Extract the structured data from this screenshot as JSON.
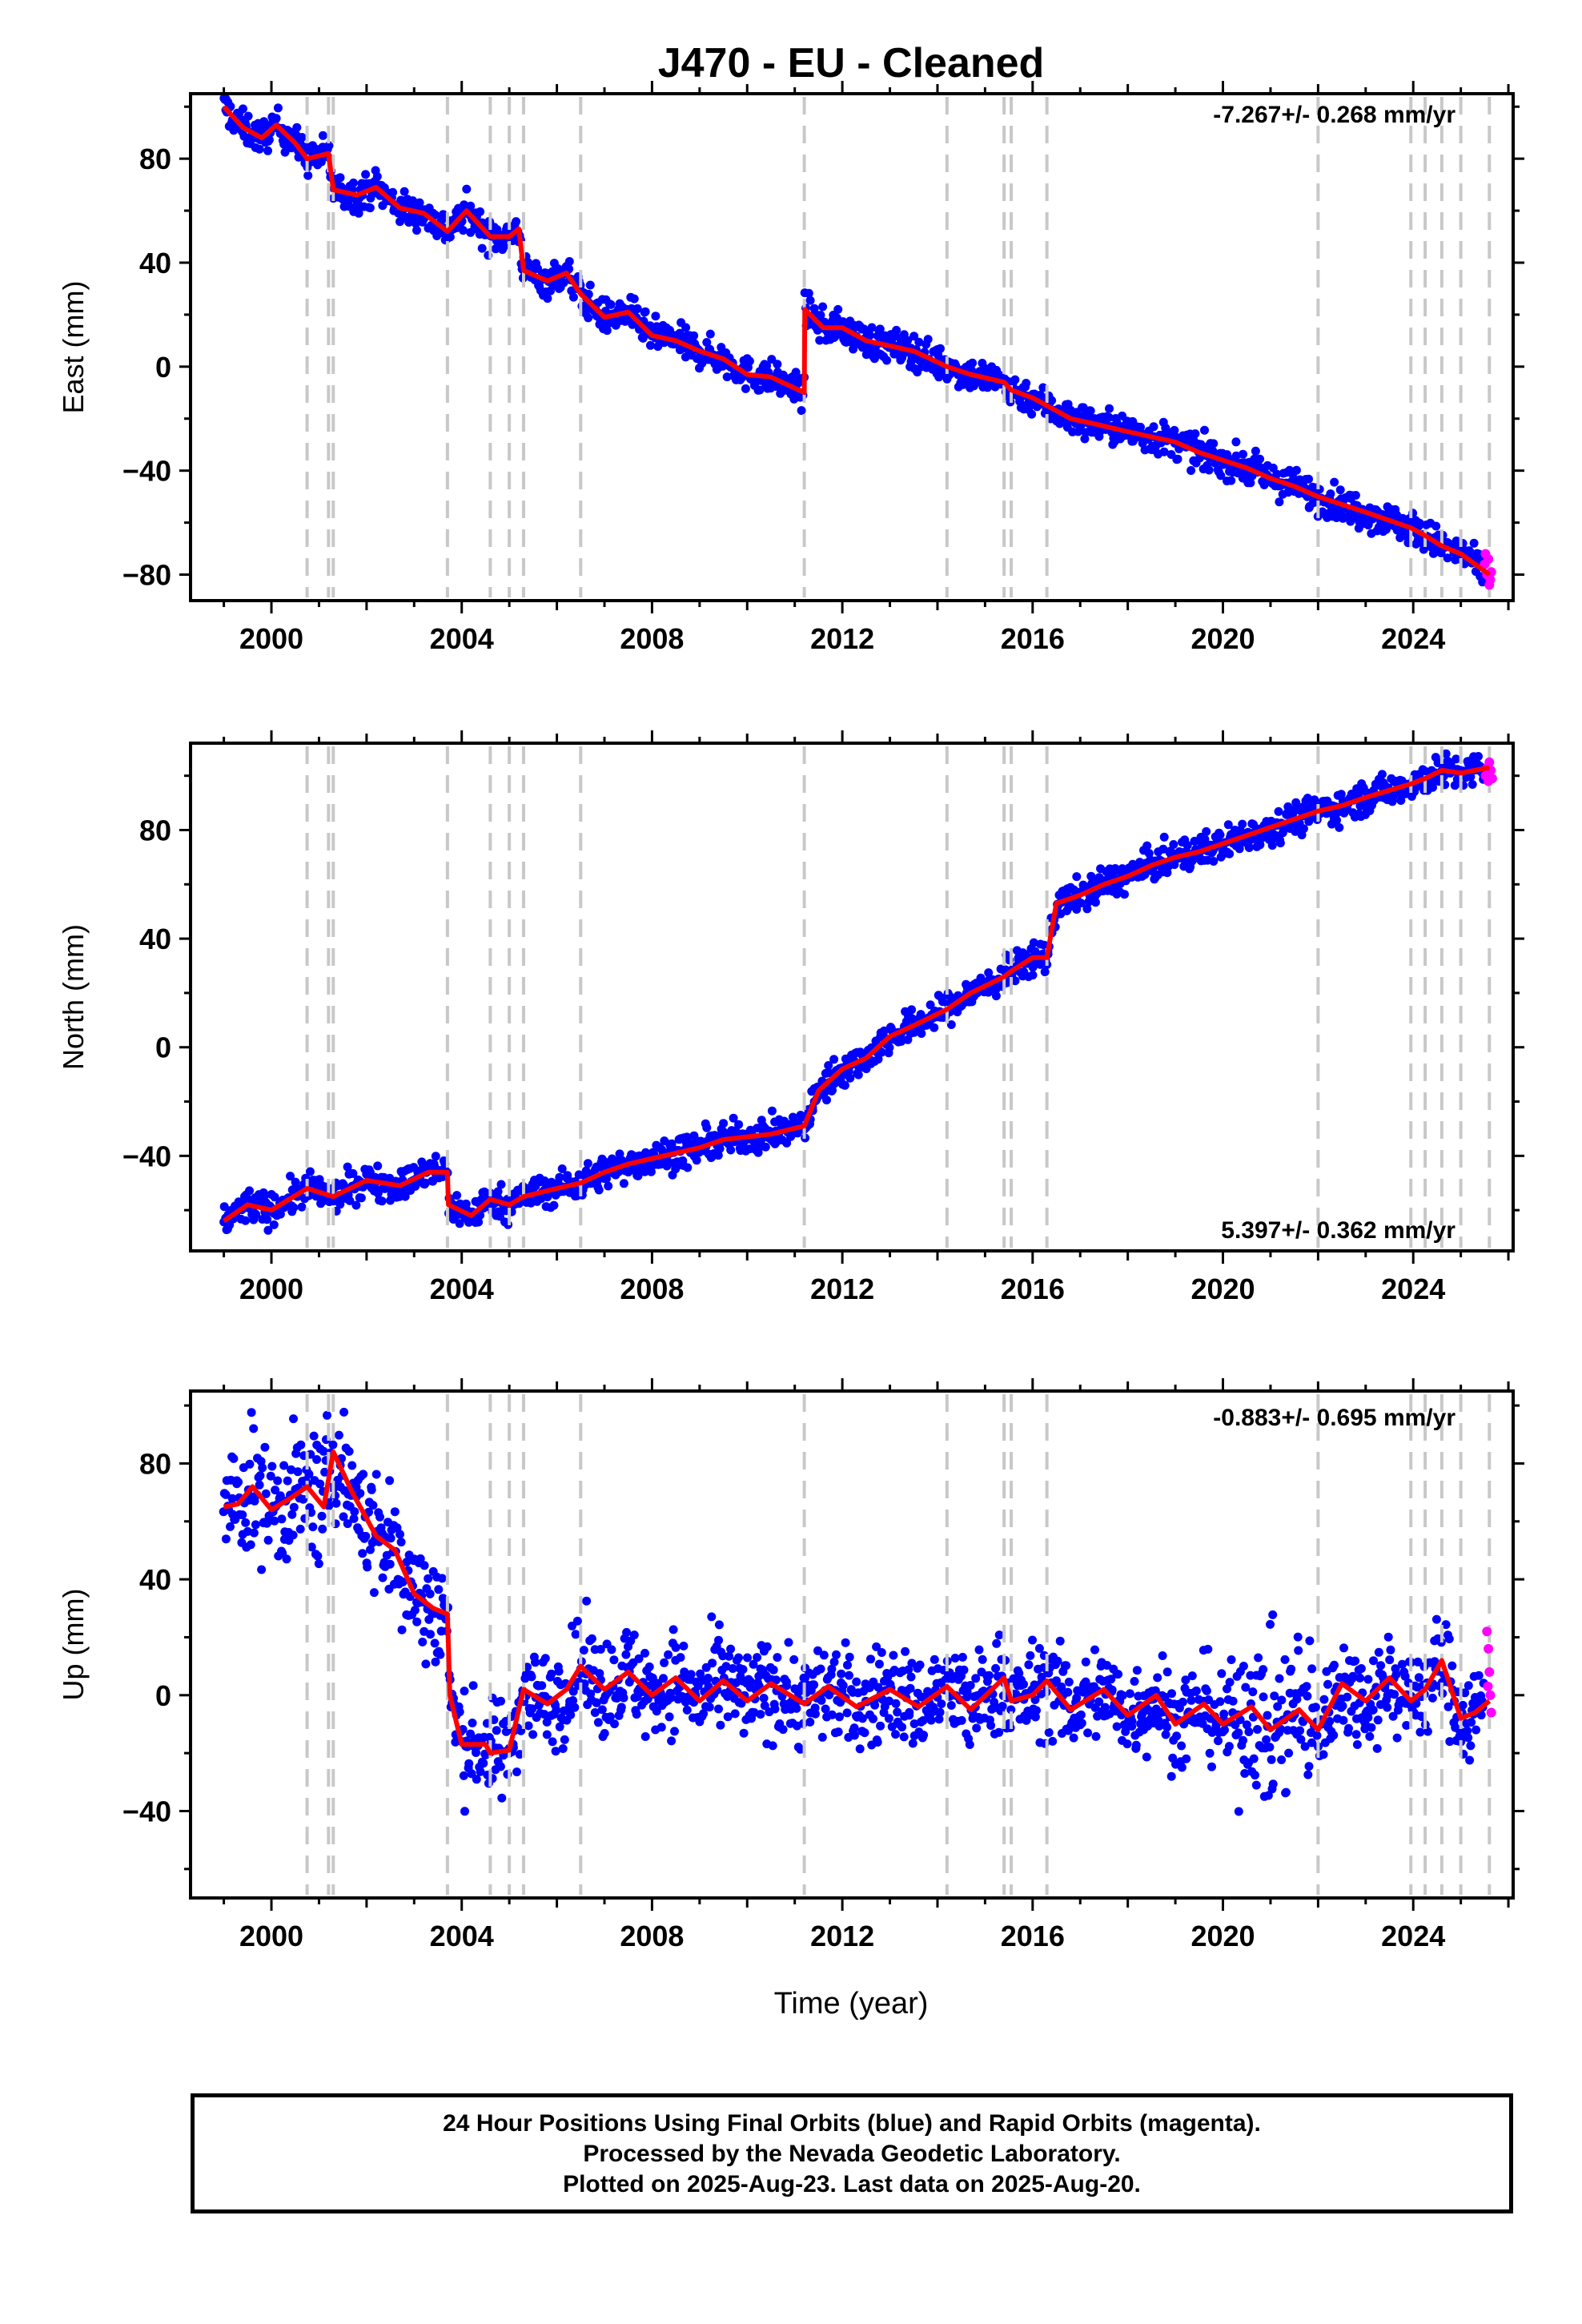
{
  "title": "J470  - EU - Cleaned",
  "x_axis_label": "Time (year)",
  "footer": {
    "line1": "24 Hour Positions Using Final Orbits (blue) and Rapid Orbits (magenta).",
    "line2": "Processed by the Nevada Geodetic Laboratory.",
    "line3": "Plotted on 2025-Aug-23. Last data on 2025-Aug-20."
  },
  "colors": {
    "final_orbits": "#0000ff",
    "rapid_orbits": "#ff00ff",
    "model": "#ff0000",
    "events": "#c8c8c8"
  },
  "chart_data": [
    {
      "type": "scatter",
      "component": "East",
      "ylabel": "East (mm)",
      "rate_label": "-7.267+/- 0.268 mm/yr",
      "xlim": [
        1998.3,
        2026.1
      ],
      "ylim": [
        -90,
        105
      ],
      "xticks": [
        2000,
        2004,
        2008,
        2012,
        2016,
        2020,
        2024
      ],
      "yticks": [
        80,
        40,
        0,
        -40,
        -80
      ],
      "tick_labels": [
        "80",
        "40",
        "0",
        "−40",
        "−80"
      ],
      "x_tick_labels": [
        "2000",
        "2004",
        "2008",
        "2012",
        "2016",
        "2020",
        "2024"
      ],
      "events": [
        2000.75,
        2001.2,
        2001.3,
        2003.7,
        2004.6,
        2005.0,
        2005.3,
        2006.5,
        2011.2,
        2014.2,
        2015.4,
        2015.55,
        2016.3,
        2022.0,
        2023.95,
        2024.25,
        2024.6,
        2025.0,
        2025.6
      ],
      "model": [
        [
          1999.0,
          100
        ],
        [
          1999.4,
          92
        ],
        [
          1999.8,
          88
        ],
        [
          2000.1,
          93
        ],
        [
          2000.5,
          86
        ],
        [
          2000.75,
          80
        ],
        [
          2001.2,
          82
        ],
        [
          2001.3,
          68
        ],
        [
          2001.8,
          66
        ],
        [
          2002.2,
          69
        ],
        [
          2002.7,
          61
        ],
        [
          2003.2,
          59
        ],
        [
          2003.7,
          52
        ],
        [
          2004.1,
          60
        ],
        [
          2004.6,
          50
        ],
        [
          2005.0,
          50
        ],
        [
          2005.2,
          53
        ],
        [
          2005.3,
          37
        ],
        [
          2005.8,
          33
        ],
        [
          2006.2,
          36
        ],
        [
          2006.5,
          28
        ],
        [
          2007.0,
          19
        ],
        [
          2007.5,
          21
        ],
        [
          2008.0,
          12
        ],
        [
          2008.5,
          10
        ],
        [
          2009.0,
          6
        ],
        [
          2009.5,
          3
        ],
        [
          2010.0,
          -3
        ],
        [
          2010.5,
          -4
        ],
        [
          2011.2,
          -10
        ],
        [
          2011.21,
          22
        ],
        [
          2011.6,
          15
        ],
        [
          2012.0,
          15
        ],
        [
          2012.5,
          10
        ],
        [
          2013.0,
          8
        ],
        [
          2013.5,
          6
        ],
        [
          2014.2,
          0
        ],
        [
          2014.7,
          -3
        ],
        [
          2015.4,
          -6
        ],
        [
          2015.55,
          -9
        ],
        [
          2016.0,
          -12
        ],
        [
          2016.3,
          -15
        ],
        [
          2016.8,
          -20
        ],
        [
          2017.3,
          -22
        ],
        [
          2018.0,
          -25
        ],
        [
          2018.5,
          -27
        ],
        [
          2019.0,
          -29
        ],
        [
          2019.5,
          -33
        ],
        [
          2020.0,
          -36
        ],
        [
          2020.5,
          -39
        ],
        [
          2021.0,
          -43
        ],
        [
          2021.5,
          -46
        ],
        [
          2022.0,
          -50
        ],
        [
          2022.5,
          -53
        ],
        [
          2023.0,
          -56
        ],
        [
          2023.95,
          -62
        ],
        [
          2024.25,
          -65
        ],
        [
          2024.6,
          -69
        ],
        [
          2025.0,
          -72
        ],
        [
          2025.6,
          -80
        ]
      ],
      "rapid": [
        [
          2025.5,
          -76
        ],
        [
          2025.55,
          -80
        ],
        [
          2025.6,
          -84
        ],
        [
          2025.62,
          -82
        ],
        [
          2025.64,
          -79
        ],
        [
          2025.58,
          -74
        ],
        [
          2025.52,
          -72
        ]
      ]
    },
    {
      "type": "scatter",
      "component": "North",
      "ylabel": "North (mm)",
      "rate_label": "5.397+/- 0.362 mm/yr",
      "xlim": [
        1998.3,
        2026.1
      ],
      "ylim": [
        -75,
        112
      ],
      "xticks": [
        2000,
        2004,
        2008,
        2012,
        2016,
        2020,
        2024
      ],
      "yticks": [
        80,
        40,
        0,
        -40
      ],
      "tick_labels": [
        "80",
        "40",
        "0",
        "−40"
      ],
      "x_tick_labels": [
        "2000",
        "2004",
        "2008",
        "2012",
        "2016",
        "2020",
        "2024"
      ],
      "events": [
        2000.75,
        2001.2,
        2001.3,
        2003.7,
        2004.6,
        2005.0,
        2005.3,
        2006.5,
        2011.2,
        2014.2,
        2015.4,
        2015.55,
        2016.3,
        2022.0,
        2023.95,
        2024.25,
        2024.6,
        2025.0,
        2025.6
      ],
      "model": [
        [
          1999.0,
          -64
        ],
        [
          1999.5,
          -58
        ],
        [
          2000.0,
          -60
        ],
        [
          2000.75,
          -52
        ],
        [
          2001.3,
          -55
        ],
        [
          2002.0,
          -49
        ],
        [
          2002.7,
          -51
        ],
        [
          2003.3,
          -46
        ],
        [
          2003.7,
          -46
        ],
        [
          2003.72,
          -58
        ],
        [
          2004.2,
          -62
        ],
        [
          2004.6,
          -56
        ],
        [
          2005.0,
          -58
        ],
        [
          2005.3,
          -55
        ],
        [
          2006.0,
          -52
        ],
        [
          2006.5,
          -50
        ],
        [
          2007.0,
          -46
        ],
        [
          2007.5,
          -43
        ],
        [
          2008.0,
          -41
        ],
        [
          2008.5,
          -39
        ],
        [
          2009.0,
          -37
        ],
        [
          2009.5,
          -34
        ],
        [
          2010.0,
          -33
        ],
        [
          2010.5,
          -32
        ],
        [
          2011.2,
          -29
        ],
        [
          2011.5,
          -16
        ],
        [
          2012.0,
          -8
        ],
        [
          2012.5,
          -4
        ],
        [
          2013.0,
          4
        ],
        [
          2013.5,
          8
        ],
        [
          2014.2,
          14
        ],
        [
          2014.7,
          20
        ],
        [
          2015.4,
          26
        ],
        [
          2015.55,
          28
        ],
        [
          2016.0,
          33
        ],
        [
          2016.3,
          33
        ],
        [
          2016.5,
          53
        ],
        [
          2017.0,
          56
        ],
        [
          2017.5,
          60
        ],
        [
          2018.0,
          63
        ],
        [
          2018.5,
          67
        ],
        [
          2019.0,
          70
        ],
        [
          2019.5,
          72
        ],
        [
          2020.0,
          75
        ],
        [
          2020.5,
          78
        ],
        [
          2021.0,
          81
        ],
        [
          2021.5,
          84
        ],
        [
          2022.0,
          87
        ],
        [
          2022.5,
          89
        ],
        [
          2023.0,
          92
        ],
        [
          2023.95,
          97
        ],
        [
          2024.25,
          99
        ],
        [
          2024.6,
          102
        ],
        [
          2025.0,
          101
        ],
        [
          2025.6,
          103
        ]
      ],
      "rapid": [
        [
          2025.52,
          100
        ],
        [
          2025.56,
          103
        ],
        [
          2025.6,
          105
        ],
        [
          2025.63,
          102
        ],
        [
          2025.66,
          99
        ],
        [
          2025.58,
          98
        ]
      ]
    },
    {
      "type": "scatter",
      "component": "Up",
      "ylabel": "Up (mm)",
      "rate_label": "-0.883+/- 0.695 mm/yr",
      "xlim": [
        1998.3,
        2026.1
      ],
      "ylim": [
        -70,
        105
      ],
      "xticks": [
        2000,
        2004,
        2008,
        2012,
        2016,
        2020,
        2024
      ],
      "yticks": [
        80,
        40,
        0,
        -40
      ],
      "tick_labels": [
        "80",
        "40",
        "0",
        "−40"
      ],
      "x_tick_labels": [
        "2000",
        "2004",
        "2008",
        "2012",
        "2016",
        "2020",
        "2024"
      ],
      "events": [
        2000.75,
        2001.2,
        2001.3,
        2003.7,
        2004.6,
        2005.0,
        2005.3,
        2006.5,
        2011.2,
        2014.2,
        2015.4,
        2015.55,
        2016.3,
        2022.0,
        2023.95,
        2024.25,
        2024.6,
        2025.0,
        2025.6
      ],
      "model": [
        [
          1999.0,
          65
        ],
        [
          1999.3,
          66
        ],
        [
          1999.6,
          72
        ],
        [
          2000.0,
          64
        ],
        [
          2000.4,
          68
        ],
        [
          2000.75,
          72
        ],
        [
          2001.1,
          65
        ],
        [
          2001.3,
          84
        ],
        [
          2001.7,
          70
        ],
        [
          2002.2,
          55
        ],
        [
          2002.6,
          50
        ],
        [
          2003.0,
          35
        ],
        [
          2003.4,
          30
        ],
        [
          2003.7,
          28
        ],
        [
          2003.75,
          0
        ],
        [
          2004.0,
          -17
        ],
        [
          2004.5,
          -17
        ],
        [
          2004.6,
          -20
        ],
        [
          2005.0,
          -19
        ],
        [
          2005.3,
          2
        ],
        [
          2005.8,
          -3
        ],
        [
          2006.2,
          2
        ],
        [
          2006.5,
          10
        ],
        [
          2007.0,
          2
        ],
        [
          2007.5,
          8
        ],
        [
          2008.0,
          0
        ],
        [
          2008.5,
          6
        ],
        [
          2009.0,
          -2
        ],
        [
          2009.5,
          5
        ],
        [
          2010.0,
          -2
        ],
        [
          2010.5,
          4
        ],
        [
          2011.2,
          -3
        ],
        [
          2011.7,
          3
        ],
        [
          2012.3,
          -4
        ],
        [
          2013.0,
          2
        ],
        [
          2013.6,
          -4
        ],
        [
          2014.2,
          3
        ],
        [
          2014.7,
          -5
        ],
        [
          2015.4,
          6
        ],
        [
          2015.55,
          -2
        ],
        [
          2016.0,
          0
        ],
        [
          2016.3,
          5
        ],
        [
          2016.8,
          -5
        ],
        [
          2017.5,
          2
        ],
        [
          2018.0,
          -7
        ],
        [
          2018.6,
          0
        ],
        [
          2019.0,
          -10
        ],
        [
          2019.6,
          -3
        ],
        [
          2020.0,
          -10
        ],
        [
          2020.6,
          -4
        ],
        [
          2021.0,
          -12
        ],
        [
          2021.6,
          -5
        ],
        [
          2022.0,
          -12
        ],
        [
          2022.5,
          4
        ],
        [
          2023.0,
          -2
        ],
        [
          2023.5,
          6
        ],
        [
          2023.95,
          -2
        ],
        [
          2024.25,
          2
        ],
        [
          2024.6,
          12
        ],
        [
          2025.0,
          -8
        ],
        [
          2025.3,
          -6
        ],
        [
          2025.6,
          -2
        ]
      ],
      "rapid": [
        [
          2025.55,
          22
        ],
        [
          2025.58,
          16
        ],
        [
          2025.6,
          8
        ],
        [
          2025.62,
          0
        ],
        [
          2025.64,
          -6
        ],
        [
          2025.57,
          3
        ]
      ]
    }
  ]
}
